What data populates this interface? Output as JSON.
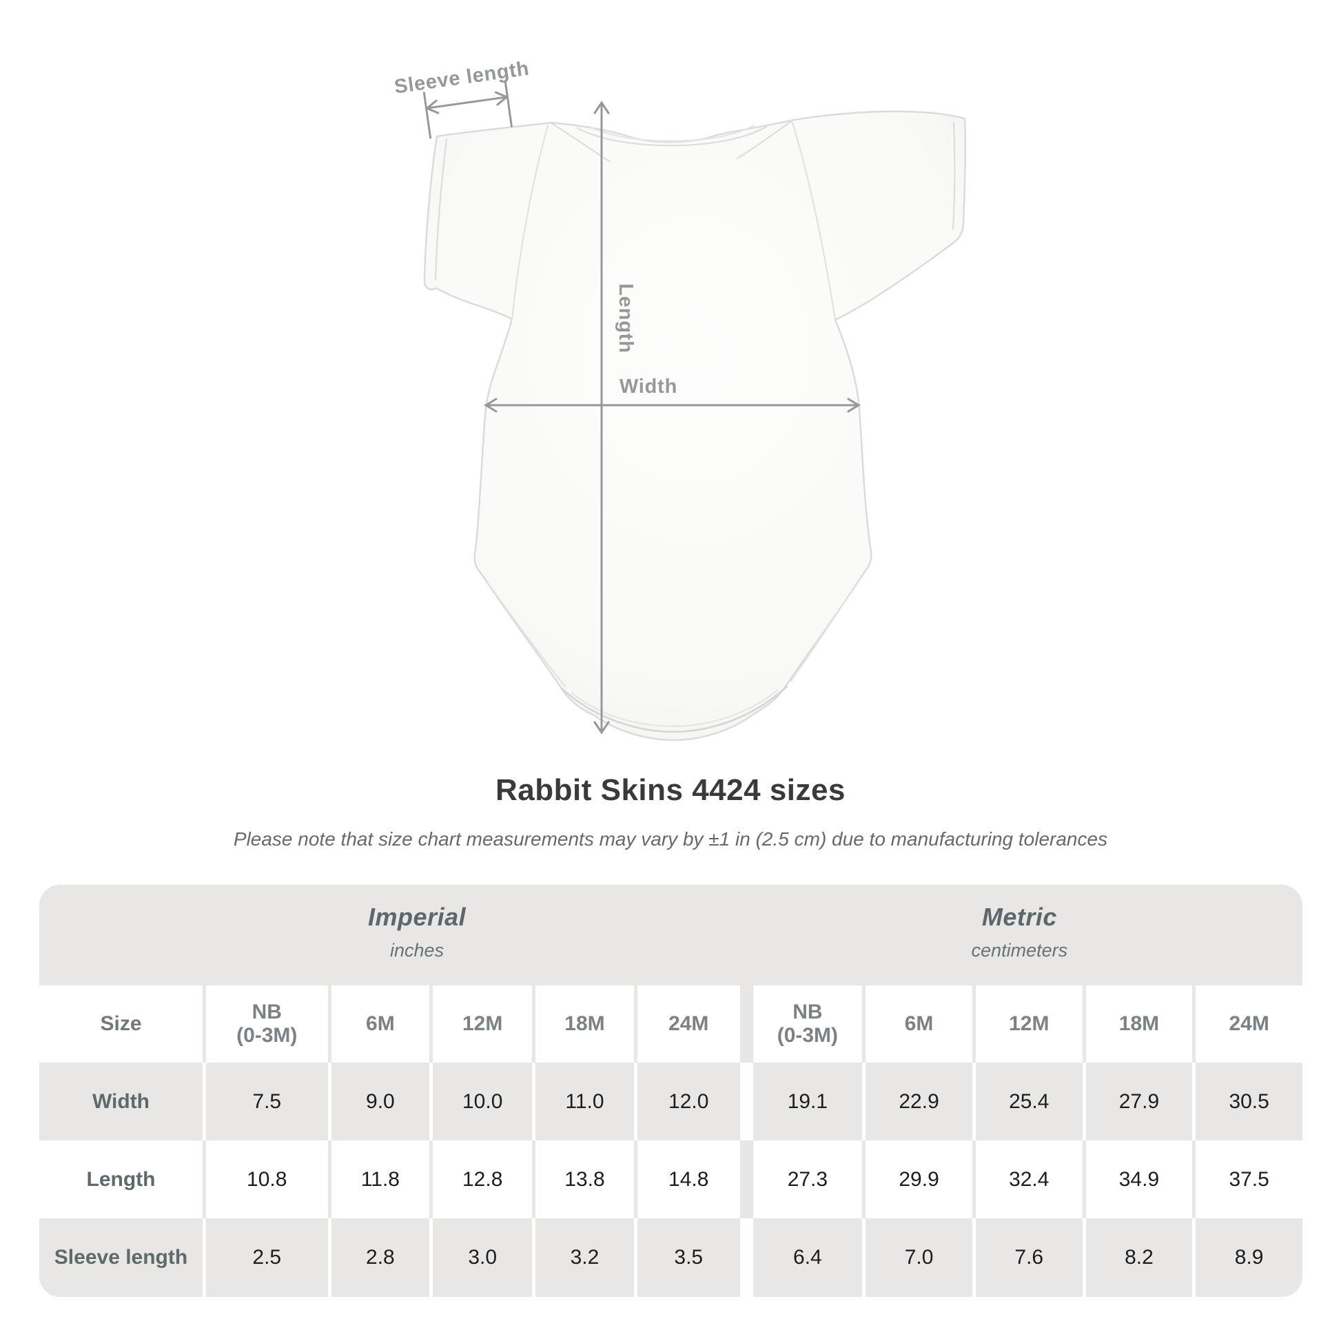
{
  "title": "Rabbit Skins 4424 sizes",
  "subtitle": "Please note that size chart measurements may vary by ±1 in (2.5 cm) due to manufacturing tolerances",
  "diagram": {
    "sleeve_label": "Sleeve length",
    "length_label": "Length",
    "width_label": "Width",
    "annotation_color": "#95989a",
    "garment": "white infant bodysuit front view"
  },
  "chart_data": {
    "type": "table",
    "unit_sections": [
      {
        "label": "Imperial",
        "sublabel": "inches"
      },
      {
        "label": "Metric",
        "sublabel": "centimeters"
      }
    ],
    "size_col_header": "Size",
    "column_headers": [
      "NB\n(0-3M)",
      "6M",
      "12M",
      "18M",
      "24M",
      "NB\n(0-3M)",
      "6M",
      "12M",
      "18M",
      "24M"
    ],
    "rows": [
      {
        "label": "Width",
        "values": [
          "7.5",
          "9.0",
          "10.0",
          "11.0",
          "12.0",
          "19.1",
          "22.9",
          "25.4",
          "27.9",
          "30.5"
        ]
      },
      {
        "label": "Length",
        "values": [
          "10.8",
          "11.8",
          "12.8",
          "13.8",
          "14.8",
          "27.3",
          "29.9",
          "32.4",
          "34.9",
          "37.5"
        ]
      },
      {
        "label": "Sleeve length",
        "values": [
          "2.5",
          "2.8",
          "3.0",
          "3.2",
          "3.5",
          "6.4",
          "7.0",
          "7.6",
          "8.2",
          "8.9"
        ]
      }
    ],
    "colors": {
      "table_bg": "#e8e7e5",
      "cell_white": "#ffffff"
    }
  }
}
